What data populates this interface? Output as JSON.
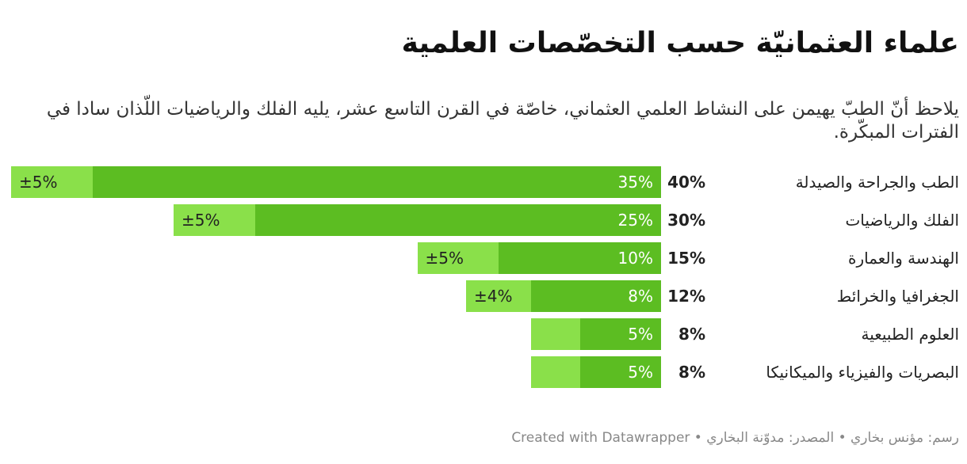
{
  "title": "علماء العثمانيّة حسب التخصّصات العلمية",
  "subtitle": "يلاحظ أنّ الطبّ يهيمن على النشاط العلمي العثماني، خاصّة في القرن التاسع عشر، يليه الفلك والرياضيات اللّذان سادا في الفترات المبكّرة.",
  "footer": "رسم: مؤنس بخاري • المصدر: مدوّنة البخاري • Created with Datawrapper",
  "colors": {
    "main_bar": "#5cbd22",
    "range_bar": "#8ae04a"
  },
  "chart_data": {
    "type": "bar",
    "orientation": "horizontal",
    "categories": [
      "الطب والجراحة والصيدلة",
      "الفلك والرياضيات",
      "الهندسة والعمارة",
      "الجغرافيا والخرائط",
      "العلوم الطبيعية",
      "البصريات والفيزياء والميكانيكا"
    ],
    "totals": [
      "40%",
      "30%",
      "15%",
      "12%",
      "8%",
      "8%"
    ],
    "value_labels": [
      "35%",
      "25%",
      "10%",
      "8%",
      "5%",
      "5%"
    ],
    "range_labels": [
      "±5%",
      "±5%",
      "±5%",
      "±4%",
      "",
      ""
    ],
    "values": [
      35,
      25,
      10,
      8,
      5,
      5
    ],
    "range": [
      5,
      5,
      5,
      4,
      3,
      3
    ],
    "xlim": [
      0,
      40
    ],
    "grid": false,
    "legend": "none"
  }
}
